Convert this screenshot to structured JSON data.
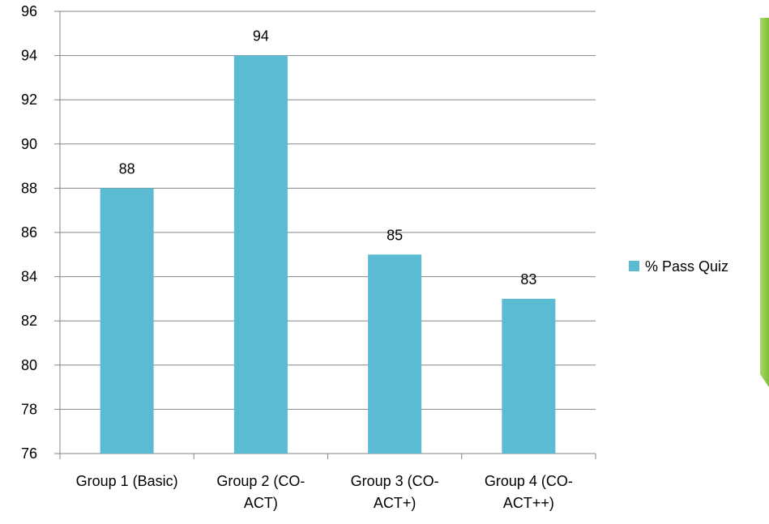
{
  "chart_data": {
    "type": "bar",
    "categories": [
      "Group 1 (Basic)",
      "Group 2 (CO-ACT)",
      "Group 3 (CO-ACT+)",
      "Group 4 (CO-ACT++)"
    ],
    "category_lines": [
      [
        "Group 1 (Basic)"
      ],
      [
        "Group 2 (CO-",
        "ACT)"
      ],
      [
        "Group 3 (CO-",
        "ACT+)"
      ],
      [
        "Group 4 (CO-",
        "ACT++)"
      ]
    ],
    "series": [
      {
        "name": "% Pass Quiz",
        "values": [
          88,
          94,
          85,
          83
        ],
        "color": "#5bbbd3"
      }
    ],
    "ylim": [
      76,
      96
    ],
    "yticks": [
      76,
      78,
      80,
      82,
      84,
      86,
      88,
      90,
      92,
      94,
      96
    ],
    "grid": true,
    "legend_position": "right",
    "title": "",
    "xlabel": "",
    "ylabel": ""
  },
  "decor": {
    "gridline_color": "#868686",
    "accent_strip_color": "#8cc63f"
  }
}
